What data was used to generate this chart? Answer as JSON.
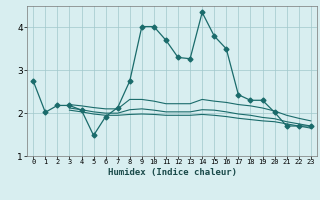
{
  "xlabel": "Humidex (Indice chaleur)",
  "background_color": "#d8eef0",
  "grid_color": "#a0c8cc",
  "line_color": "#1a6b6b",
  "xlim": [
    -0.5,
    23.5
  ],
  "ylim": [
    1,
    4.5
  ],
  "yticks": [
    1,
    2,
    3,
    4
  ],
  "xticks": [
    0,
    1,
    2,
    3,
    4,
    5,
    6,
    7,
    8,
    9,
    10,
    11,
    12,
    13,
    14,
    15,
    16,
    17,
    18,
    19,
    20,
    21,
    22,
    23
  ],
  "series1_x": [
    0,
    1,
    2,
    3,
    4,
    5,
    6,
    7,
    8,
    9,
    10,
    11,
    12,
    13,
    14,
    15,
    16,
    17,
    18,
    19,
    20,
    21,
    22,
    23
  ],
  "series1_y": [
    2.75,
    2.02,
    2.18,
    2.18,
    2.07,
    1.48,
    1.92,
    2.13,
    2.75,
    4.02,
    4.02,
    3.7,
    3.3,
    3.27,
    4.35,
    3.8,
    3.5,
    2.43,
    2.3,
    2.3,
    2.02,
    1.7,
    1.7,
    1.7
  ],
  "series2_x": [
    3,
    4,
    5,
    6,
    7,
    8,
    9,
    10,
    11,
    12,
    13,
    14,
    15,
    16,
    17,
    18,
    19,
    20,
    21,
    22,
    23
  ],
  "series2_y": [
    2.2,
    2.17,
    2.13,
    2.1,
    2.1,
    2.32,
    2.32,
    2.28,
    2.22,
    2.22,
    2.22,
    2.32,
    2.28,
    2.25,
    2.2,
    2.17,
    2.12,
    2.05,
    1.95,
    1.88,
    1.82
  ],
  "series3_x": [
    3,
    4,
    5,
    6,
    7,
    8,
    9,
    10,
    11,
    12,
    13,
    14,
    15,
    16,
    17,
    18,
    19,
    20,
    21,
    22,
    23
  ],
  "series3_y": [
    2.12,
    2.08,
    2.03,
    2.0,
    2.0,
    2.08,
    2.1,
    2.07,
    2.03,
    2.03,
    2.03,
    2.08,
    2.07,
    2.03,
    1.98,
    1.95,
    1.9,
    1.87,
    1.8,
    1.75,
    1.7
  ],
  "series4_x": [
    3,
    4,
    5,
    6,
    7,
    8,
    9,
    10,
    11,
    12,
    13,
    14,
    15,
    16,
    17,
    18,
    19,
    20,
    21,
    22,
    23
  ],
  "series4_y": [
    2.07,
    2.03,
    1.98,
    1.95,
    1.95,
    1.97,
    1.98,
    1.97,
    1.95,
    1.95,
    1.95,
    1.97,
    1.95,
    1.92,
    1.88,
    1.85,
    1.82,
    1.8,
    1.75,
    1.7,
    1.65
  ]
}
